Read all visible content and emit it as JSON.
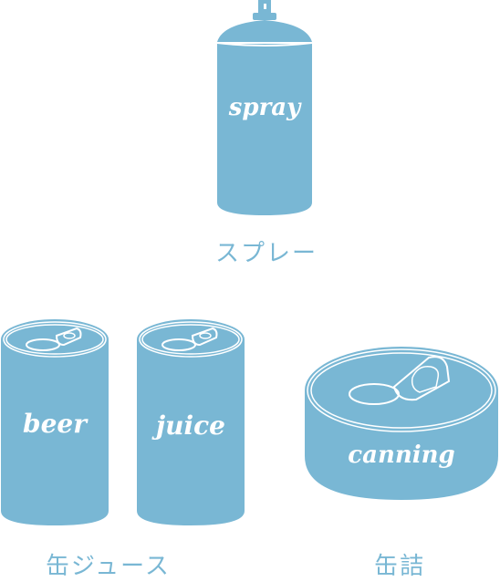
{
  "colors": {
    "can": "#79b7d4",
    "line": "#ffffff",
    "background": "#ffffff"
  },
  "items": {
    "spray": {
      "label": "spray",
      "caption": "スプレー"
    },
    "beer": {
      "label": "beer"
    },
    "juice": {
      "label": "juice"
    },
    "drink_caption": "缶ジュース",
    "canning": {
      "label": "canning",
      "caption": "缶詰"
    }
  }
}
